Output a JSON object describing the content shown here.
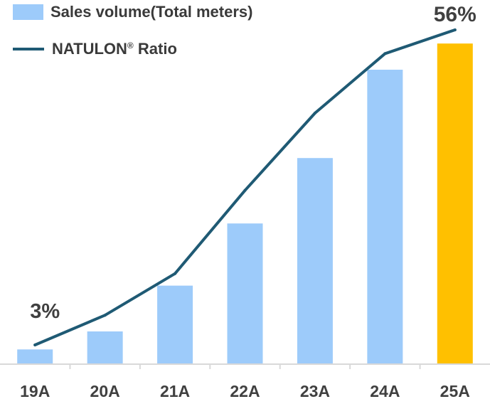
{
  "chart_data": {
    "type": "bar",
    "categories": [
      "19A",
      "20A",
      "21A",
      "22A",
      "23A",
      "24A",
      "25A"
    ],
    "series": [
      {
        "name": "Sales volume(Total meters)",
        "type": "bar",
        "values": [
          4.5,
          10,
          24,
          43,
          63,
          90,
          98
        ]
      },
      {
        "name": "NATULON® Ratio",
        "type": "line",
        "values": [
          3,
          8,
          15,
          29,
          42,
          52,
          56
        ]
      }
    ],
    "data_labels": [
      {
        "series": "NATULON® Ratio",
        "category": "19A",
        "text": "3%"
      },
      {
        "series": "NATULON® Ratio",
        "category": "25A",
        "text": "56%"
      }
    ],
    "highlight": {
      "category": "25A"
    },
    "colors": {
      "bar": "#9dcbfa",
      "bar_highlight": "#ffc000",
      "line": "#1f5a74",
      "axis": "#d9d9d9",
      "label": "#404040"
    },
    "title": "",
    "xlabel": "",
    "ylabel": "",
    "grid": false,
    "legend_position": "top-left"
  },
  "legend": {
    "bar_label": "Sales volume(Total meters)",
    "line_label_main": "NATULON",
    "line_label_mark": "®",
    "line_label_tail": " Ratio"
  }
}
